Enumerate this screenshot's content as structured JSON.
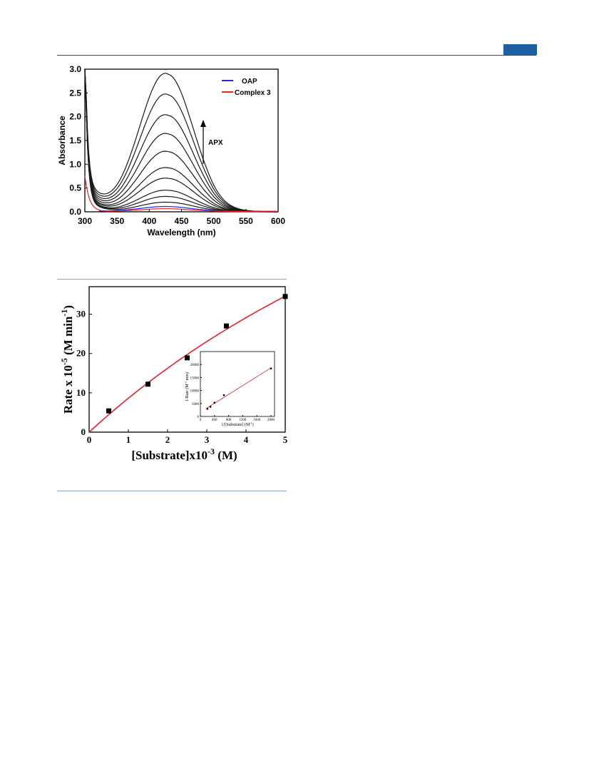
{
  "page": {
    "header_rule_color": "#1f4e8c",
    "header_tab_color": "#1f5fa3",
    "separator_color": "#8aa6c8"
  },
  "chart_data": [
    {
      "type": "line",
      "title": "",
      "xlabel": "Wavelength (nm)",
      "ylabel": "Absorbance",
      "xlim": [
        300,
        600
      ],
      "ylim": [
        0,
        3.0
      ],
      "x_ticks": [
        "300",
        "350",
        "400",
        "450",
        "500",
        "550",
        "600"
      ],
      "y_ticks": [
        "0.0",
        "0.5",
        "1.0",
        "1.5",
        "2.0",
        "2.5",
        "3.0"
      ],
      "legend": {
        "placement": "top-right",
        "entries": [
          {
            "name": "OAP",
            "color": "#2222ee"
          },
          {
            "name": "Complex 3",
            "color": "#ee2222"
          }
        ]
      },
      "annotation": {
        "text": "APX",
        "arrow": "up"
      },
      "peak_nm": 425,
      "apx_series_peak_absorbance": [
        0.2,
        0.32,
        0.45,
        0.7,
        0.92,
        1.26,
        1.63,
        2.02,
        2.45,
        2.88
      ],
      "series": [
        {
          "name": "OAP",
          "color": "#2222ee",
          "peak_absorbance": 0.1
        },
        {
          "name": "Complex 3",
          "color": "#ee2222",
          "start_absorbance": 0.75,
          "peak_absorbance": 0.06
        }
      ],
      "grid": false
    },
    {
      "type": "scatter",
      "title": "",
      "xlabel_main": "[Substrate]x10",
      "xlabel_exp": "-3",
      "xlabel_unit": " (M)",
      "ylabel_main": "Rate x 10",
      "ylabel_exp": "-5",
      "ylabel_unit": " (M min",
      "ylabel_unit_exp": "-1",
      "ylabel_close": ")",
      "xlim": [
        0,
        5
      ],
      "ylim": [
        0,
        37
      ],
      "x_ticks": [
        "0",
        "1",
        "2",
        "3",
        "4",
        "5"
      ],
      "y_ticks": [
        "0",
        "10",
        "20",
        "30"
      ],
      "points": [
        {
          "x": 0.5,
          "y": 5.4
        },
        {
          "x": 1.5,
          "y": 12.2
        },
        {
          "x": 2.5,
          "y": 18.9
        },
        {
          "x": 3.5,
          "y": 27.0
        },
        {
          "x": 5.0,
          "y": 34.5
        }
      ],
      "fit": {
        "type": "michaelis-menten",
        "color": "#e8212a",
        "vmax": 139,
        "km": 15.1
      },
      "grid": false,
      "inset": {
        "type": "scatter",
        "xlabel": "1/[Substrate] (M",
        "xlabel_exp": "-1",
        "xlabel_close": ")",
        "ylabel": "1/Rate (M",
        "ylabel_exp": "-1",
        "ylabel_unit": " min)",
        "xlim": [
          0,
          2100
        ],
        "ylim": [
          0,
          25000
        ],
        "x_ticks": [
          "0",
          "400",
          "800",
          "1200",
          "1600",
          "2000"
        ],
        "y_ticks": [
          "0",
          "5000",
          "10000",
          "15000",
          "20000"
        ],
        "points": [
          {
            "x": 200,
            "y": 2950
          },
          {
            "x": 286,
            "y": 3700
          },
          {
            "x": 400,
            "y": 5300
          },
          {
            "x": 667,
            "y": 8200
          },
          {
            "x": 2000,
            "y": 18500
          }
        ],
        "fit": {
          "type": "linear",
          "color": "#e8212a"
        }
      }
    }
  ]
}
